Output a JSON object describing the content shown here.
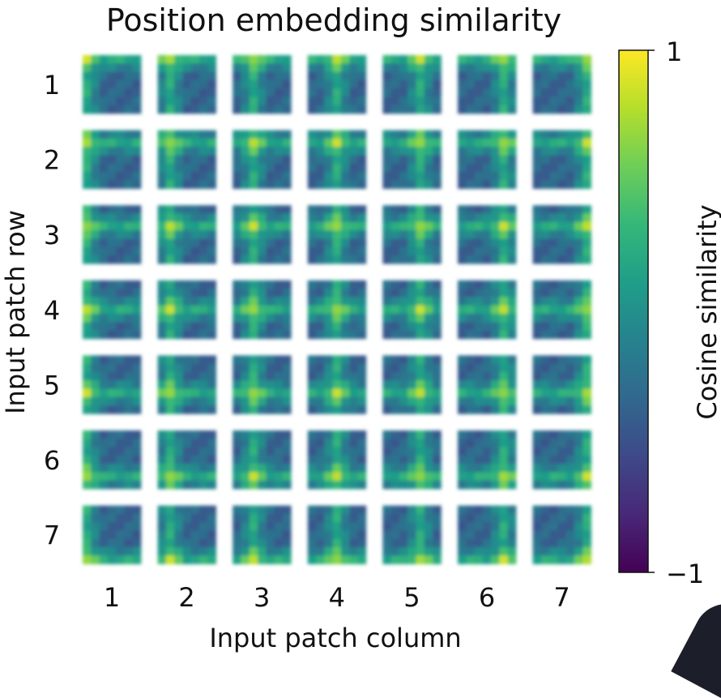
{
  "chart_data": {
    "type": "heatmap",
    "title": "Position embedding similarity",
    "xlabel": "Input patch column",
    "ylabel": "Input patch row",
    "rows": [
      "1",
      "2",
      "3",
      "4",
      "5",
      "6",
      "7"
    ],
    "columns": [
      "1",
      "2",
      "3",
      "4",
      "5",
      "6",
      "7"
    ],
    "cells_per_tile": 7,
    "value_range": [
      -1,
      1
    ],
    "colorbar": {
      "label": "Cosine similarity",
      "tick_labels": [
        "1",
        "−1"
      ],
      "colormap": "viridis",
      "colors": [
        "#440154",
        "#482878",
        "#3e4989",
        "#31688e",
        "#26828e",
        "#1f9e89",
        "#35b779",
        "#6ece58",
        "#b5de2b",
        "#fde725"
      ]
    },
    "background": "#ffffff"
  }
}
